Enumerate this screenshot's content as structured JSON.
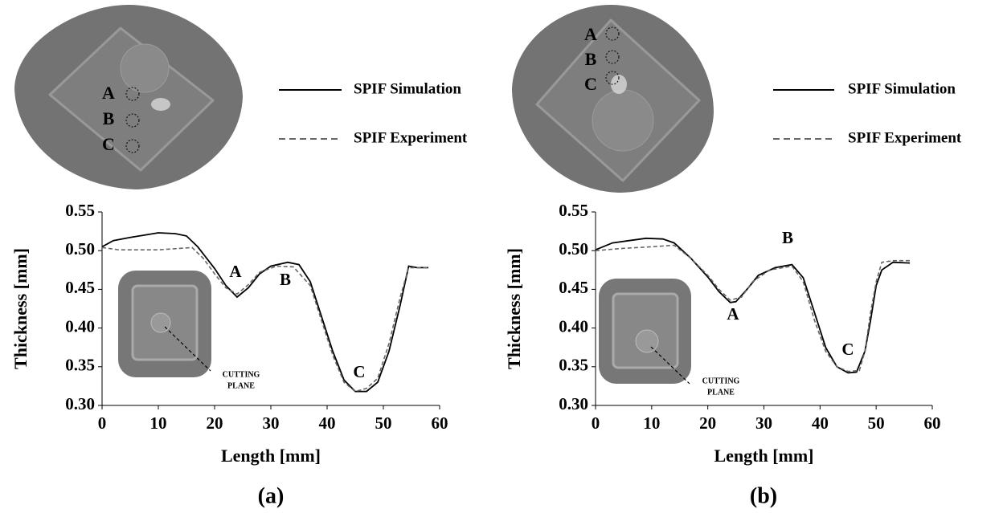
{
  "chart_data": [
    {
      "type": "line",
      "panel_label": "(a)",
      "xlabel": "Length [mm]",
      "ylabel": "Thickness [mm]",
      "xlim": [
        0,
        60
      ],
      "xticks": [
        0,
        10,
        20,
        30,
        40,
        50,
        60
      ],
      "ylim": [
        0.3,
        0.55
      ],
      "yticks": [
        {
          "value": 0.3,
          "label": "0.30"
        },
        0.35,
        {
          "value": 0.4,
          "label": "0.40"
        },
        0.45,
        {
          "value": 0.5,
          "label": "0.50"
        },
        0.55
      ],
      "series": [
        {
          "name": "SPIF Simulation",
          "color": "#000000",
          "dash": false,
          "x": [
            0,
            2,
            5,
            10,
            13,
            15,
            17,
            20,
            22,
            24,
            26,
            28,
            30,
            33,
            35,
            37,
            39,
            41,
            43,
            45,
            47,
            49,
            51,
            53,
            54.5,
            56,
            58
          ],
          "values": [
            0.505,
            0.513,
            0.517,
            0.523,
            0.522,
            0.519,
            0.505,
            0.477,
            0.455,
            0.44,
            0.452,
            0.47,
            0.48,
            0.485,
            0.482,
            0.46,
            0.415,
            0.37,
            0.333,
            0.318,
            0.318,
            0.33,
            0.37,
            0.43,
            0.48,
            0.478,
            0.478
          ]
        },
        {
          "name": "SPIF Experiment",
          "color": "#666666",
          "dash": true,
          "x": [
            0,
            3,
            10,
            14,
            16,
            18,
            20,
            22,
            24,
            26,
            28,
            31,
            34,
            37,
            39,
            41,
            43,
            45,
            47,
            49,
            51,
            53,
            54.5,
            56,
            58
          ],
          "values": [
            0.504,
            0.501,
            0.501,
            0.503,
            0.504,
            0.49,
            0.47,
            0.452,
            0.444,
            0.456,
            0.472,
            0.48,
            0.479,
            0.455,
            0.41,
            0.365,
            0.33,
            0.318,
            0.322,
            0.335,
            0.38,
            0.44,
            0.478,
            0.478,
            0.478
          ]
        }
      ],
      "annotations": [
        "A",
        "B",
        "C"
      ],
      "image_labels": [
        "A",
        "B",
        "C"
      ],
      "inset_label": [
        "CUTTING",
        "PLANE"
      ]
    },
    {
      "type": "line",
      "panel_label": "(b)",
      "xlabel": "Length [mm]",
      "ylabel": "Thickness [mm]",
      "xlim": [
        0,
        60
      ],
      "xticks": [
        0,
        10,
        20,
        30,
        40,
        50,
        60
      ],
      "ylim": [
        0.3,
        0.55
      ],
      "yticks": [
        {
          "value": 0.3,
          "label": "0.30"
        },
        0.35,
        {
          "value": 0.4,
          "label": "0.40"
        },
        0.45,
        {
          "value": 0.5,
          "label": "0.50"
        },
        0.55
      ],
      "series": [
        {
          "name": "SPIF Simulation",
          "color": "#000000",
          "dash": false,
          "x": [
            0,
            3,
            6,
            9,
            12,
            14,
            17,
            20,
            22,
            24,
            25,
            27,
            29,
            32,
            35,
            37,
            39,
            41,
            43,
            45,
            46.5,
            48,
            49,
            50,
            51,
            53,
            56
          ],
          "values": [
            0.501,
            0.51,
            0.513,
            0.516,
            0.515,
            0.51,
            0.49,
            0.466,
            0.447,
            0.433,
            0.434,
            0.45,
            0.468,
            0.478,
            0.482,
            0.465,
            0.42,
            0.375,
            0.35,
            0.342,
            0.343,
            0.37,
            0.41,
            0.455,
            0.475,
            0.485,
            0.484
          ]
        },
        {
          "name": "SPIF Experiment",
          "color": "#666666",
          "dash": true,
          "x": [
            0,
            5,
            10,
            14,
            17,
            20,
            22,
            24,
            26,
            28,
            31,
            35,
            37,
            39,
            41,
            43,
            45,
            47,
            48,
            49,
            50,
            51,
            53,
            56
          ],
          "values": [
            0.5,
            0.503,
            0.505,
            0.507,
            0.49,
            0.468,
            0.45,
            0.436,
            0.44,
            0.46,
            0.475,
            0.48,
            0.46,
            0.41,
            0.37,
            0.35,
            0.344,
            0.345,
            0.37,
            0.42,
            0.46,
            0.485,
            0.487,
            0.487
          ]
        }
      ],
      "annotations": [
        "A",
        "B",
        "C"
      ],
      "image_labels": [
        "A",
        "B",
        "C"
      ],
      "inset_label": [
        "CUTTING",
        "PLANE"
      ]
    }
  ]
}
